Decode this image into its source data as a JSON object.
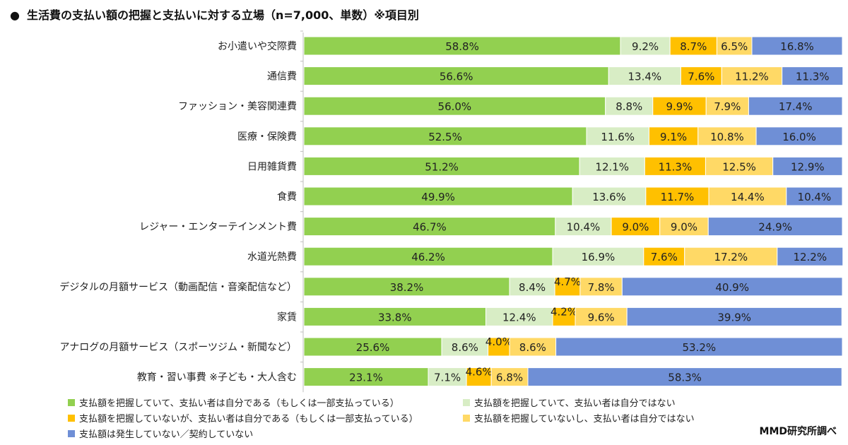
{
  "title": "生活費の支払い額の把握と支払いに対する立場（n=7,000、単数）※項目別",
  "bullet": "●",
  "source": "MMD研究所調べ",
  "chart_data": {
    "type": "bar",
    "orientation": "horizontal",
    "stacked": true,
    "unit": "%",
    "title": "生活費の支払い額の把握と支払いに対する立場（n=7,000、単数）※項目別",
    "categories": [
      "お小遣いや交際費",
      "通信費",
      "ファッション・美容関連費",
      "医療・保険費",
      "日用雑貨費",
      "食費",
      "レジャー・エンターテインメント費",
      "水道光熱費",
      "デジタルの月額サービス（動画配信・音楽配信など）",
      "家賃",
      "アナログの月額サービス（スポーツジム・新聞など）",
      "教育・習い事費 ※子ども・大人含む"
    ],
    "series": [
      {
        "name": "支払額を把握していて、支払い者は自分である（もしくは一部支払っている）",
        "color": "#92d050",
        "values": [
          58.8,
          56.6,
          56.0,
          52.5,
          51.2,
          49.9,
          46.7,
          46.2,
          38.2,
          33.8,
          25.6,
          23.1
        ]
      },
      {
        "name": "支払額を把握していて、支払い者は自分ではない",
        "color": "#d8edc5",
        "values": [
          9.2,
          13.4,
          8.8,
          11.6,
          12.1,
          13.6,
          10.4,
          16.9,
          8.4,
          12.4,
          8.6,
          7.1
        ]
      },
      {
        "name": "支払額を把握していないが、支払い者は自分である（もしくは一部支払っている）",
        "color": "#ffc000",
        "values": [
          8.7,
          7.6,
          9.9,
          9.1,
          11.3,
          11.7,
          9.0,
          7.6,
          4.7,
          4.2,
          4.0,
          4.6
        ]
      },
      {
        "name": "支払額を把握していないし、支払い者は自分ではない",
        "color": "#ffd966",
        "values": [
          6.5,
          11.2,
          7.9,
          10.8,
          12.5,
          14.4,
          9.0,
          17.2,
          7.8,
          9.6,
          8.6,
          6.8
        ]
      },
      {
        "name": "支払額は発生していない／契約していない",
        "color": "#6f8fd6",
        "values": [
          16.8,
          11.3,
          17.4,
          16.0,
          12.9,
          10.4,
          24.9,
          12.2,
          40.9,
          39.9,
          53.2,
          58.3
        ]
      }
    ],
    "xlim": [
      0,
      100
    ],
    "legend_position": "bottom"
  }
}
